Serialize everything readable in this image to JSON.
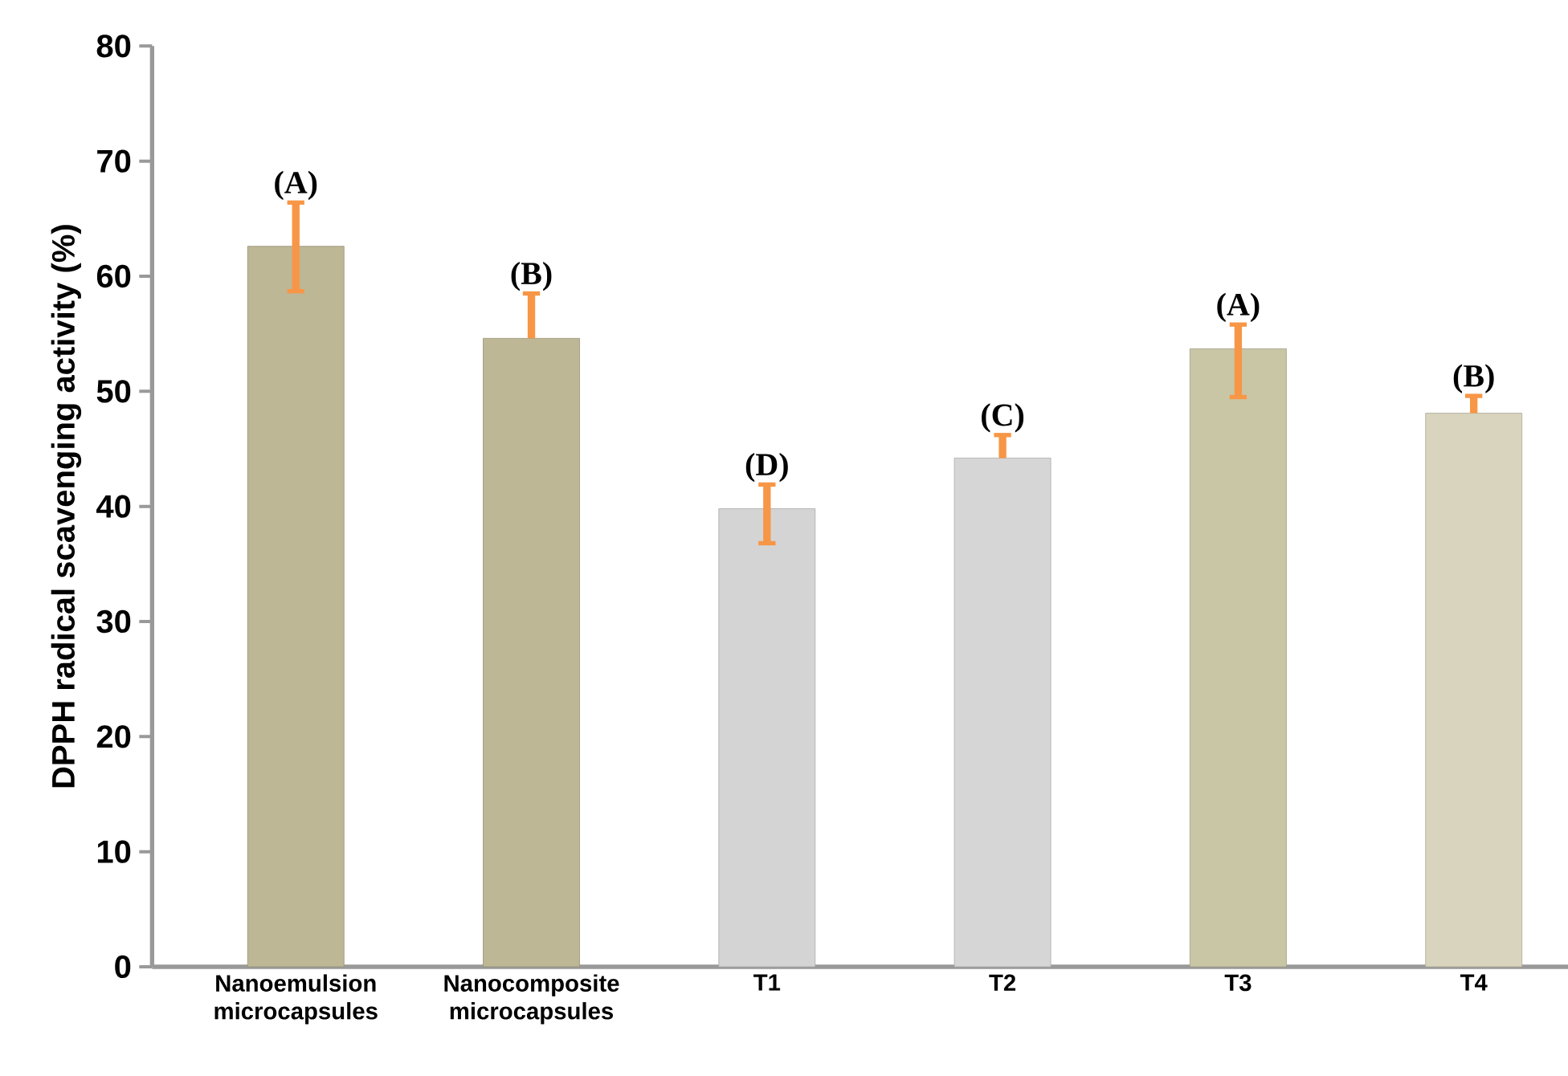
{
  "chart_data": {
    "type": "bar",
    "categories": [
      "Nanoemulsion microcapsules",
      "Nanocomposite microcapsules",
      "T1",
      "T2",
      "T3",
      "T4"
    ],
    "values": [
      62.6,
      54.6,
      39.8,
      44.2,
      53.7,
      48.1
    ],
    "colors": [
      "#bdb795",
      "#bdb795",
      "#d4d4d4",
      "#d6d6d6",
      "#c9c6a6",
      "#d8d4bd"
    ],
    "errors": [
      [
        58.7,
        66.4
      ],
      [
        54.6,
        58.5
      ],
      [
        36.8,
        41.9
      ],
      [
        44.2,
        46.2
      ],
      [
        49.5,
        55.8
      ],
      [
        48.1,
        49.6
      ]
    ],
    "ylabel": "DPPH radical scavenging activity (%)",
    "ylim": [
      0,
      80
    ],
    "yticks": [
      0,
      10,
      20,
      30,
      40,
      50,
      60,
      70,
      80
    ],
    "annotations": [
      {
        "text": "(A)",
        "x": "Nanoemulsion microcapsules",
        "y": 66.4
      },
      {
        "text": "(B)",
        "x": "Nanocomposite microcapsules",
        "y": 58.5
      },
      {
        "text": "(D)",
        "x": "T1",
        "y": 41.9
      },
      {
        "text": "(C)",
        "x": "T2",
        "y": 46.2
      },
      {
        "text": "(A)",
        "x": "T3",
        "y": 55.8
      },
      {
        "text": "(B)",
        "x": "T4",
        "y": 49.6
      }
    ]
  }
}
